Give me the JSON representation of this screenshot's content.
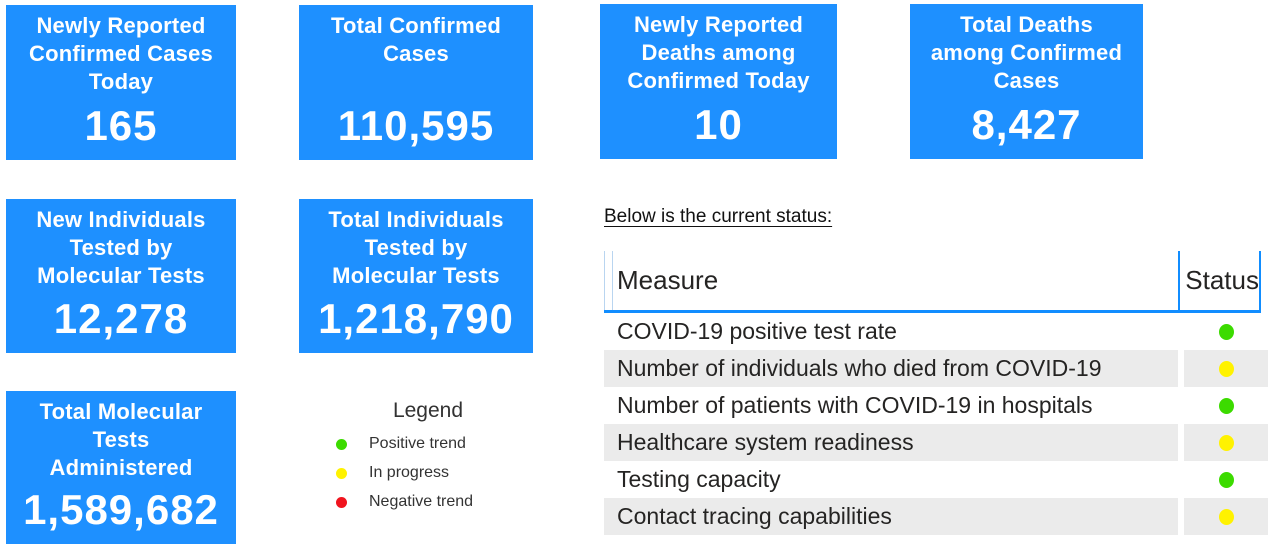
{
  "cards": [
    {
      "title": "Newly Reported Confirmed Cases Today",
      "value": "165"
    },
    {
      "title": "Total Confirmed Cases",
      "value": "110,595"
    },
    {
      "title": "Newly Reported Deaths among Confirmed Today",
      "value": "10"
    },
    {
      "title": "Total Deaths among Confirmed Cases",
      "value": "8,427"
    },
    {
      "title": "New Individuals Tested by Molecular Tests",
      "value": "12,278"
    },
    {
      "title": "Total Individuals Tested by Molecular Tests",
      "value": "1,218,790"
    },
    {
      "title": "Total Molecular Tests Administered",
      "value": "1,589,682"
    }
  ],
  "legend": {
    "title": "Legend",
    "items": [
      {
        "label": "Positive trend",
        "color": "#3CDB00"
      },
      {
        "label": "In progress",
        "color": "#FFF200"
      },
      {
        "label": "Negative trend",
        "color": "#F0141E"
      }
    ]
  },
  "status_section": {
    "heading": "Below is the current status:",
    "table": {
      "columns": [
        "Measure",
        "Status"
      ],
      "rows": [
        {
          "measure": "COVID-19 positive test rate",
          "status": "green"
        },
        {
          "measure": "Number of individuals who died from COVID-19",
          "status": "yellow"
        },
        {
          "measure": "Number of patients with COVID-19 in hospitals",
          "status": "green"
        },
        {
          "measure": "Healthcare system readiness",
          "status": "yellow"
        },
        {
          "measure": "Testing capacity",
          "status": "green"
        },
        {
          "measure": "Contact tracing capabilities",
          "status": "yellow"
        }
      ]
    }
  },
  "colors": {
    "card_blue": "#1E90FF",
    "table_line_blue": "#118DFF",
    "row_alt_gray": "#EBEBEB",
    "status_green": "#3CDB00",
    "status_yellow": "#FFF200",
    "status_red": "#F0141E"
  }
}
